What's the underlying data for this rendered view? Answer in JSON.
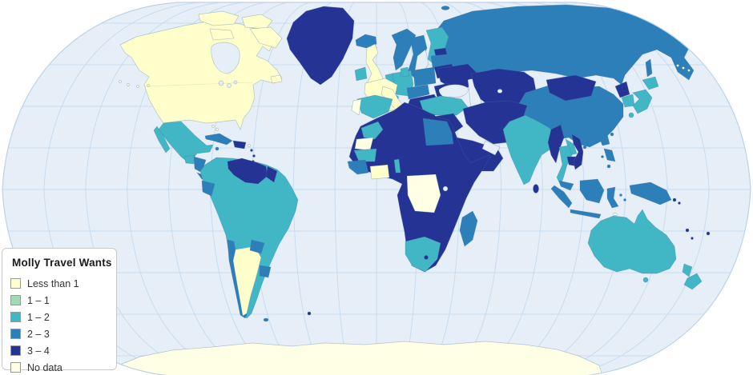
{
  "chart_data": {
    "type": "choropleth_map",
    "title": "Molly Travel Wants",
    "projection": "robinson-world",
    "legend_position": "bottom-left",
    "classes": [
      {
        "key": "less_than_1",
        "label": "Less than 1",
        "color": "#FFFFCC"
      },
      {
        "key": "1_1",
        "label": "1 – 1",
        "color": "#A1DAB4"
      },
      {
        "key": "1_2",
        "label": "1 – 2",
        "color": "#41B6C4"
      },
      {
        "key": "2_3",
        "label": "2 – 3",
        "color": "#2C7FB8"
      },
      {
        "key": "3_4",
        "label": "3 – 4",
        "color": "#253494"
      },
      {
        "key": "no_data",
        "label": "No data",
        "color": "#FFFFE5"
      }
    ],
    "region_values": {
      "canada_usa": "less_than_1",
      "canada_arctic_islands": "less_than_1",
      "newfoundland": "less_than_1",
      "aleutian_islands": "less_than_1",
      "hawaii": "less_than_1",
      "bahamas": "less_than_1",
      "puerto_rico": "less_than_1",
      "uk": "less_than_1",
      "france": "less_than_1",
      "italy": "less_than_1",
      "argentina": "less_than_1",
      "ivory_coast": "less_than_1",
      "ireland": "1_2",
      "finland": "1_2",
      "denmark": "1_2",
      "germany": "1_2",
      "benelux": "1_2",
      "switzerland": "1_2",
      "spain": "1_2",
      "turkey": "1_2",
      "morocco": "1_2",
      "mauritania": "1_2",
      "benin_togo": "1_2",
      "south_africa": "1_2",
      "india": "1_2",
      "japan": "1_2",
      "south_korea": "1_2",
      "thailand": "1_2",
      "laos": "1_2",
      "australia": "1_2",
      "tasmania": "1_2",
      "new_zealand": "1_2",
      "mexico": "1_2",
      "guatemala": "1_2",
      "south_america": "1_2",
      "iceland": "2_3",
      "norway": "2_3",
      "sweden": "2_3",
      "latvia_lithuania": "2_3",
      "poland": "2_3",
      "czech_austria": "2_3",
      "russia": "2_3",
      "russia_chukotka": "2_3",
      "sakhalin": "2_3",
      "svalbard": "2_3",
      "egypt": "2_3",
      "senegal_guinea": "2_3",
      "madagascar": "2_3",
      "cuba": "2_3",
      "jamaica": "2_3",
      "honduras_nicaragua": "2_3",
      "costa_rica_panama": "2_3",
      "ecuador": "2_3",
      "chile": "2_3",
      "paraguay": "2_3",
      "uruguay": "2_3",
      "falklands": "2_3",
      "china": "2_3",
      "taiwan": "2_3",
      "hainan": "2_3",
      "malaysia": "2_3",
      "indonesia": "2_3",
      "new_guinea": "2_3",
      "philippines": "2_3",
      "greenland": "3_4",
      "estonia": "3_4",
      "belarus": "3_4",
      "ukraine": "3_4",
      "romania": "3_4",
      "balkans": "3_4",
      "caucasus": "3_4",
      "syria_iraq": "3_4",
      "arabia": "3_4",
      "iran_afghan_pak": "3_4",
      "kazakhstan_central_asia": "3_4",
      "mongolia": "3_4",
      "north_korea": "3_4",
      "myanmar": "3_4",
      "cambodia": "3_4",
      "vietnam": "3_4",
      "sri_lanka": "3_4",
      "africa": "3_4",
      "lesotho": "3_4",
      "hispaniola": "3_4",
      "lesser_antilles": "3_4",
      "venezuela": "3_4",
      "guyana": "3_4",
      "south_georgia": "3_4",
      "pacific_islands": "3_4",
      "portugal": "no_data",
      "western_sahara": "no_data",
      "dr_congo": "no_data",
      "antarctica": "no_data",
      "timor": "no_data"
    },
    "map_style": {
      "ocean": "#E6EFF8",
      "graticule": "#C6DCF0",
      "outline": "#BCD2E8",
      "land_border": "#46729E",
      "internal_border": "#CCC9A3",
      "background": "#FFFFFF"
    }
  },
  "legend": {
    "title": "Molly Travel Wants"
  }
}
